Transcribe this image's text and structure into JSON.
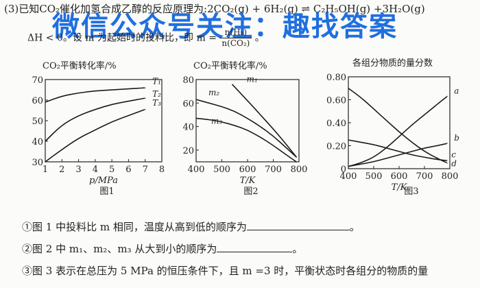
{
  "header": {
    "line1": "(3)已知CO₂催化加氢合成乙醇的反应原理为:2CO₂(g) + 6H₂(g) ⇌ C₂H₅OH(g) +3H₂O(g)",
    "line2_prefix": "ΔH < 0。设 m 为起始时的投料比，即 m =",
    "frac_num": "n(H₂)",
    "frac_den": "n(CO₂)",
    "line2_suffix": "。"
  },
  "watermark": "微信公众号关注：趣找答案",
  "figures": [
    {
      "caption": "图1",
      "ylabel": "CO₂平衡转化率/%",
      "xlabel": "p/MPa",
      "yticks": [
        "70",
        "60",
        "50",
        "40",
        "30"
      ],
      "xticks": [
        "1",
        "2",
        "3",
        "4",
        "5",
        "6",
        "7",
        "8"
      ],
      "series_labels": [
        "T₁",
        "T₂",
        "T₃"
      ]
    },
    {
      "caption": "图2",
      "ylabel": "CO₂平衡转化率/%",
      "xlabel": "T/K",
      "yticks": [
        "80",
        "60",
        "40",
        "20"
      ],
      "xticks": [
        "400",
        "500",
        "600",
        "700",
        "800"
      ],
      "series_labels": [
        "m₁",
        "m₂",
        "m₃"
      ]
    },
    {
      "caption": "图3",
      "ylabel": "各组分物质的量分数",
      "xlabel": "T/K",
      "yticks": [
        "0.80",
        "0.60",
        "0.40",
        "0.20",
        "0"
      ],
      "xticks": [
        "400",
        "500",
        "600",
        "700",
        "800"
      ],
      "series_labels": [
        "a",
        "b",
        "c",
        "d"
      ]
    }
  ],
  "chart_data": [
    {
      "type": "line",
      "title": "图1",
      "xlabel": "p/MPa",
      "ylabel": "CO₂平衡转化率/%",
      "xlim": [
        1,
        8
      ],
      "ylim": [
        30,
        70
      ],
      "series": [
        {
          "name": "T₁",
          "x": [
            1,
            2,
            3,
            4,
            5,
            6,
            7
          ],
          "values": [
            59,
            62,
            63.5,
            64.5,
            65,
            65.5,
            66
          ]
        },
        {
          "name": "T₂",
          "x": [
            1,
            2,
            3,
            4,
            5,
            6,
            7
          ],
          "values": [
            40,
            48,
            52.5,
            55.5,
            58,
            59.5,
            61
          ]
        },
        {
          "name": "T₃",
          "x": [
            1,
            2,
            3,
            4,
            5,
            6,
            7
          ],
          "values": [
            30,
            36,
            41.5,
            45.5,
            49.5,
            52.5,
            55.5
          ]
        }
      ]
    },
    {
      "type": "line",
      "title": "图2",
      "xlabel": "T/K",
      "ylabel": "CO₂平衡转化率/%",
      "xlim": [
        400,
        800
      ],
      "ylim": [
        10,
        80
      ],
      "series": [
        {
          "name": "m₁",
          "x": [
            540,
            600,
            650,
            700,
            750,
            790
          ],
          "values": [
            76,
            62,
            50,
            38,
            25,
            14
          ]
        },
        {
          "name": "m₂",
          "x": [
            400,
            450,
            500,
            550,
            600,
            650,
            700,
            750,
            790
          ],
          "values": [
            63,
            60,
            57,
            53,
            47,
            40,
            32,
            22,
            14
          ]
        },
        {
          "name": "m₃",
          "x": [
            400,
            450,
            500,
            550,
            600,
            650,
            700,
            750,
            790
          ],
          "values": [
            47,
            46,
            44,
            41,
            37,
            31,
            24,
            16,
            10
          ]
        }
      ]
    },
    {
      "type": "line",
      "title": "图3",
      "xlabel": "T/K",
      "ylabel": "各组分物质的量分数",
      "xlim": [
        400,
        800
      ],
      "ylim": [
        0,
        0.8
      ],
      "series": [
        {
          "name": "a",
          "x": [
            400,
            450,
            500,
            550,
            600,
            650,
            700,
            750,
            790
          ],
          "values": [
            0.02,
            0.05,
            0.1,
            0.18,
            0.28,
            0.38,
            0.47,
            0.56,
            0.63
          ]
        },
        {
          "name": "b",
          "x": [
            400,
            450,
            500,
            550,
            600,
            650,
            700,
            750,
            790
          ],
          "values": [
            0.02,
            0.04,
            0.06,
            0.09,
            0.12,
            0.15,
            0.18,
            0.2,
            0.22
          ]
        },
        {
          "name": "c",
          "x": [
            400,
            450,
            500,
            550,
            600,
            650,
            700,
            750,
            790
          ],
          "values": [
            0.25,
            0.23,
            0.21,
            0.18,
            0.15,
            0.12,
            0.1,
            0.08,
            0.07
          ]
        },
        {
          "name": "d",
          "x": [
            400,
            450,
            500,
            550,
            600,
            650,
            700,
            750,
            790
          ],
          "values": [
            0.7,
            0.62,
            0.52,
            0.42,
            0.32,
            0.23,
            0.15,
            0.09,
            0.05
          ]
        }
      ]
    }
  ],
  "questions": [
    {
      "text": "①图 1 中投料比 m 相同，温度从高到低的顺序为",
      "end": "。"
    },
    {
      "text": "②图 2 中 m₁、m₂、m₃ 从大到小的顺序为",
      "end": "。"
    },
    {
      "text": "③图 3 表示在总压为 5 MPa 的恒压条件下，且 m =3 时，平衡状态时各组分的物质的量",
      "end": ""
    }
  ]
}
